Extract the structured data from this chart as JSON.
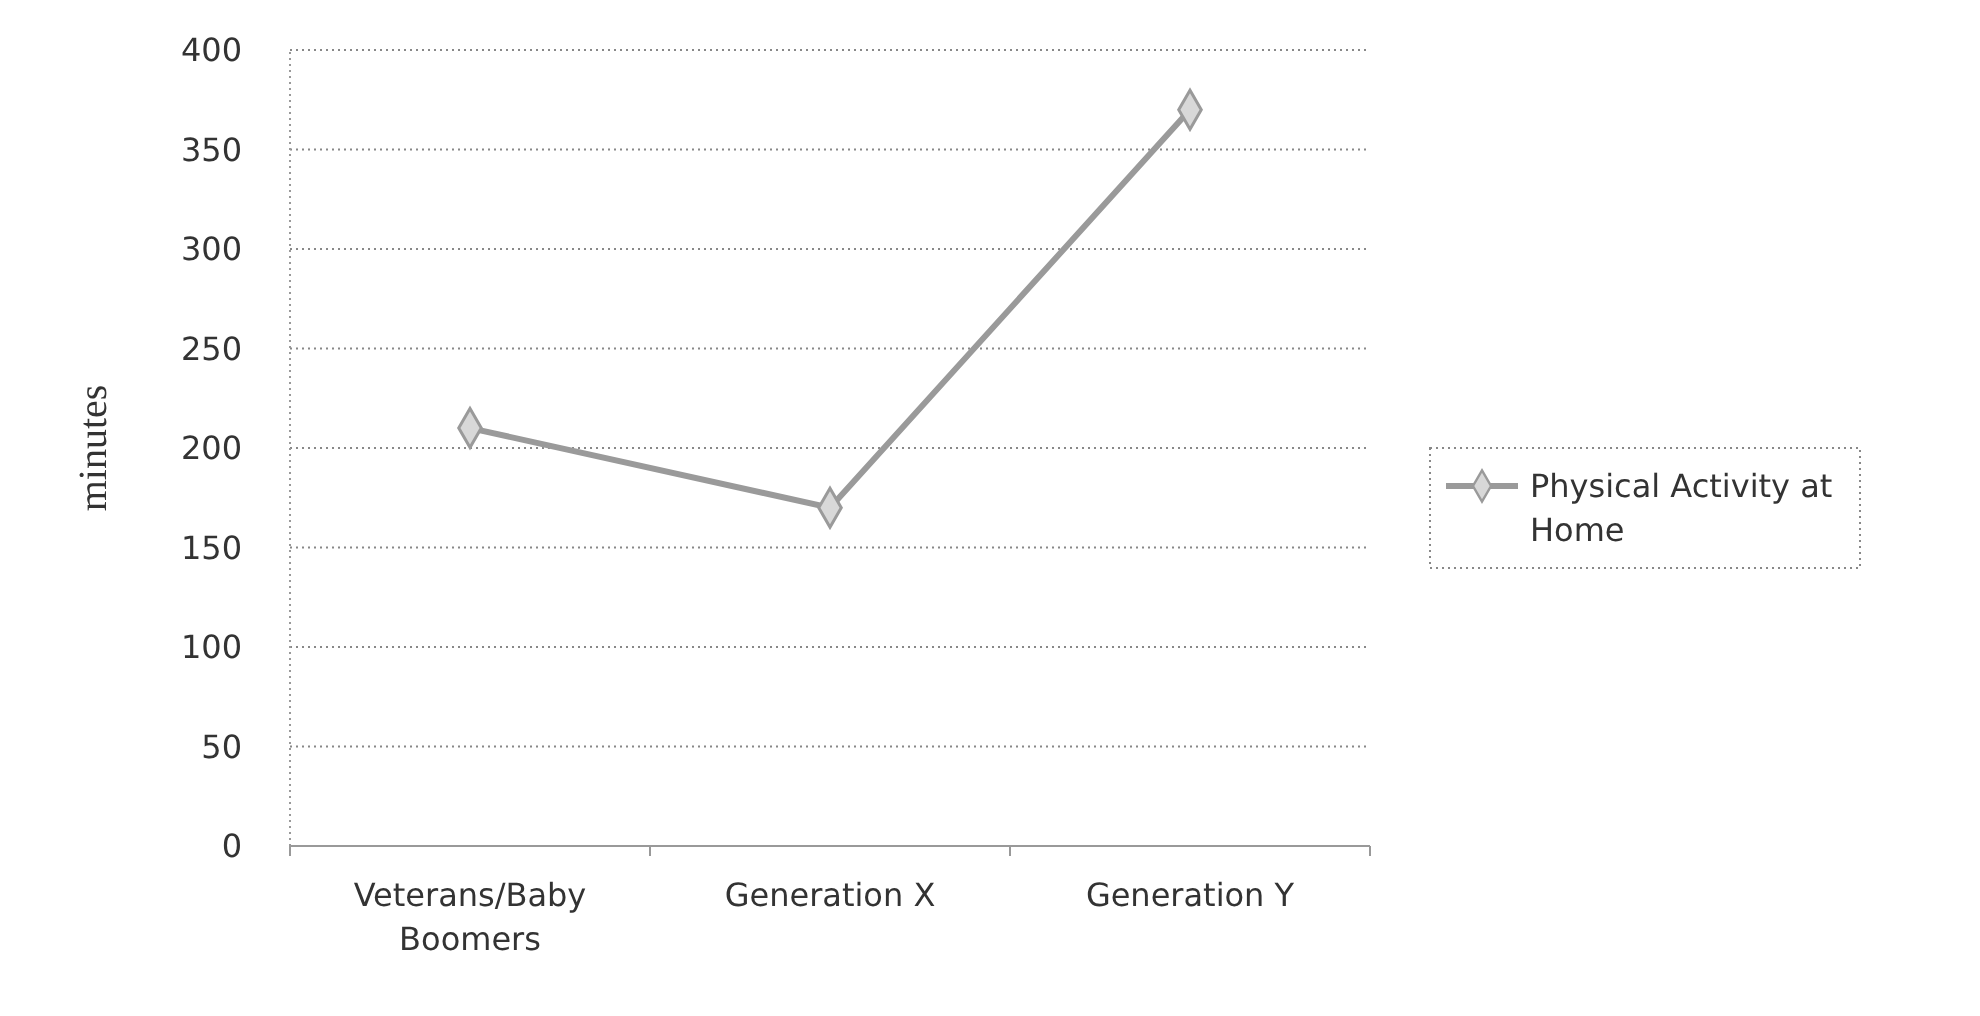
{
  "chart_data": {
    "type": "line",
    "ylabel": "minutes",
    "categories": [
      "Veterans/Baby Boomers",
      "Generation X",
      "Generation Y"
    ],
    "series": [
      {
        "name": "Physical Activity at Home",
        "color": "#9a9a9a",
        "values": [
          210,
          170,
          370
        ]
      }
    ],
    "ylim": [
      0,
      400
    ],
    "yticks": [
      0,
      50,
      100,
      150,
      200,
      250,
      300,
      350,
      400
    ],
    "grid": "y",
    "legend": "right",
    "marker": "diamond",
    "line_style": "solid"
  }
}
